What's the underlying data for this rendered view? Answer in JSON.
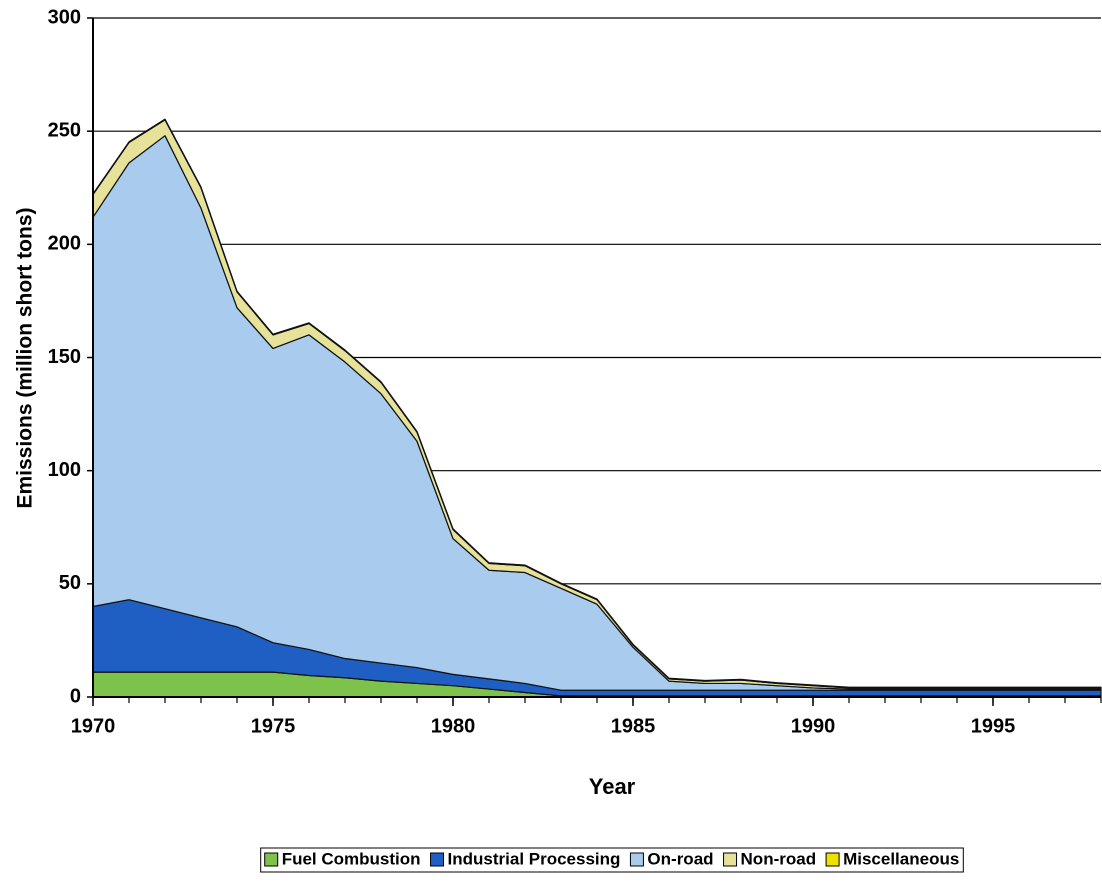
{
  "chart_data": {
    "type": "stacked_area",
    "x_label": "Year",
    "y_label": "Emissions (million short tons)",
    "x": [
      1970,
      1971,
      1972,
      1973,
      1974,
      1975,
      1976,
      1977,
      1978,
      1979,
      1980,
      1981,
      1982,
      1983,
      1984,
      1985,
      1986,
      1987,
      1988,
      1989,
      1990,
      1991,
      1992,
      1993,
      1994,
      1995,
      1996,
      1997,
      1998
    ],
    "xlim": [
      1970,
      1998
    ],
    "xticks": [
      1970,
      1975,
      1980,
      1985,
      1990,
      1995
    ],
    "ylim": [
      0,
      300
    ],
    "yticks": [
      0,
      50,
      100,
      150,
      200,
      250,
      300
    ],
    "grid": true,
    "legend": "bottom",
    "series": [
      {
        "name": "Fuel Combustion",
        "color": "#7dc24b",
        "values": [
          11,
          11,
          11,
          11,
          11,
          11,
          9.5,
          8.5,
          7,
          6,
          5,
          3.5,
          2,
          0.5,
          0.5,
          0.5,
          0.5,
          0.5,
          0.5,
          0.5,
          0.5,
          0.5,
          0.5,
          0.5,
          0.5,
          0.5,
          0.5,
          0.5,
          0.5
        ]
      },
      {
        "name": "Industrial Processing",
        "color": "#1f5fc4",
        "values": [
          29,
          32,
          28,
          24,
          20,
          13,
          11.5,
          8.5,
          8,
          7,
          5,
          4.5,
          4,
          2.5,
          2.5,
          2.5,
          2.5,
          2.5,
          2.5,
          2.5,
          2.5,
          2.5,
          2.5,
          2.5,
          2.5,
          2.5,
          2.5,
          2.5,
          2.5
        ]
      },
      {
        "name": "On-road",
        "color": "#a8cbee",
        "values": [
          172,
          193,
          209,
          181,
          141,
          130,
          139,
          131,
          119,
          100,
          60,
          48,
          49,
          45,
          38,
          19,
          4,
          3,
          3,
          2,
          1,
          0.5,
          0.5,
          0.5,
          0.5,
          0.5,
          0.5,
          0.5,
          0.5
        ]
      },
      {
        "name": "Non-road",
        "color": "#e6e29a",
        "values": [
          10,
          9,
          7,
          9,
          7,
          6,
          5,
          5,
          5,
          4,
          4,
          3,
          3,
          2,
          2,
          1,
          1,
          1,
          1.5,
          1,
          1,
          0.5,
          0.5,
          0.5,
          0.5,
          0.5,
          0.5,
          0.5,
          0.5
        ]
      },
      {
        "name": "Miscellaneous",
        "color": "#f0e000",
        "values": [
          0.3,
          0.3,
          0.3,
          0.3,
          0.3,
          0.3,
          0.3,
          0.3,
          0.3,
          0.3,
          0.3,
          0.3,
          0.3,
          0.3,
          0.3,
          0.3,
          0.3,
          0.3,
          0.3,
          0.3,
          0.3,
          0.3,
          0.3,
          0.3,
          0.3,
          0.3,
          0.3,
          0.3,
          0.3
        ]
      }
    ]
  }
}
